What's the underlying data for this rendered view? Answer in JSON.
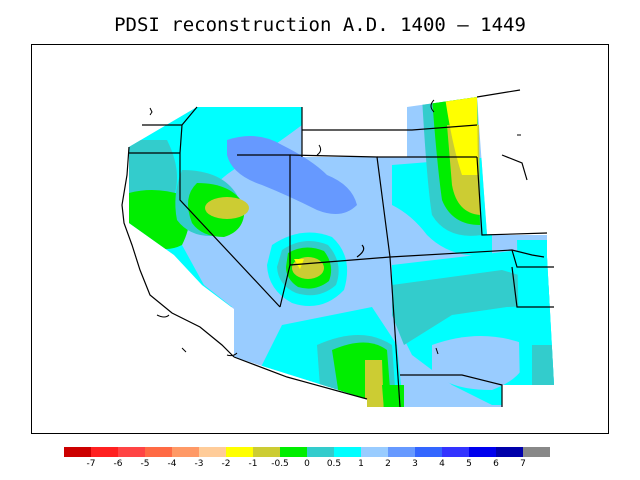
{
  "title": "PDSI reconstruction A.D. 1400 – 1449",
  "colorbar": {
    "colors": [
      "#cc0000",
      "#ff2020",
      "#ff4444",
      "#ff6a44",
      "#ff9966",
      "#ffcc99",
      "#ffff00",
      "#cccc33",
      "#00ee00",
      "#33cccc",
      "#00ffff",
      "#99ccff",
      "#6699ff",
      "#3366ff",
      "#3333ff",
      "#0000ee",
      "#0000aa",
      "#888888"
    ],
    "labels": [
      "-7",
      "-6",
      "-5",
      "-4",
      "-3",
      "-2",
      "-1",
      "-0.5",
      "0",
      "0.5",
      "1",
      "2",
      "3",
      "4",
      "5",
      "6",
      "7"
    ]
  },
  "palette": {
    "yellow": "#ffff00",
    "olive": "#cccc33",
    "green": "#00ee00",
    "teal": "#33cccc",
    "cyan": "#00ffff",
    "lightblue": "#99ccff",
    "blue": "#6699ff"
  }
}
